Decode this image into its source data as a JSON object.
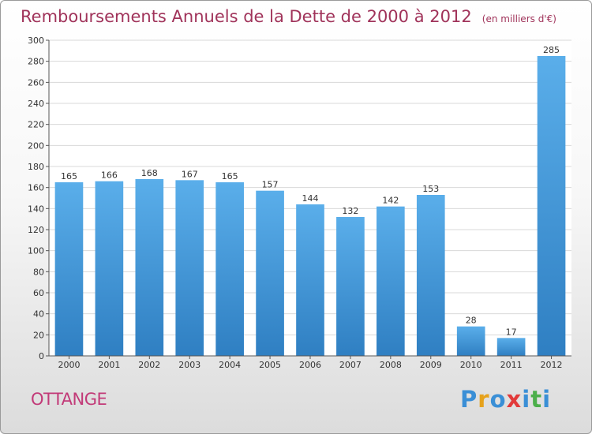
{
  "header": {
    "title": "Remboursements Annuels de la Dette de 2000 à 2012",
    "subtitle": "(en milliers d'€)"
  },
  "footer": {
    "commune": "OTTANGE",
    "logo_letters": [
      "P",
      "r",
      "o",
      "x",
      "i",
      "t",
      "i"
    ],
    "logo_colors": [
      "#3a8fd6",
      "#e6a21c",
      "#3a8fd6",
      "#e23a3a",
      "#3a8fd6",
      "#4caf4a",
      "#3a8fd6"
    ]
  },
  "colors": {
    "bar_top": "#5aaeea",
    "bar_bottom": "#2f7fc2",
    "title": "#a0335a",
    "commune": "#c23a78"
  },
  "chart_data": {
    "type": "bar",
    "categories": [
      "2000",
      "2001",
      "2002",
      "2003",
      "2004",
      "2005",
      "2006",
      "2007",
      "2008",
      "2009",
      "2010",
      "2011",
      "2012"
    ],
    "values": [
      165,
      166,
      168,
      167,
      165,
      157,
      144,
      132,
      142,
      153,
      28,
      17,
      285
    ],
    "ylim": [
      0,
      300
    ],
    "yticks": [
      0,
      20,
      40,
      60,
      80,
      100,
      120,
      140,
      160,
      180,
      200,
      220,
      240,
      260,
      280,
      300
    ],
    "grid": true
  }
}
